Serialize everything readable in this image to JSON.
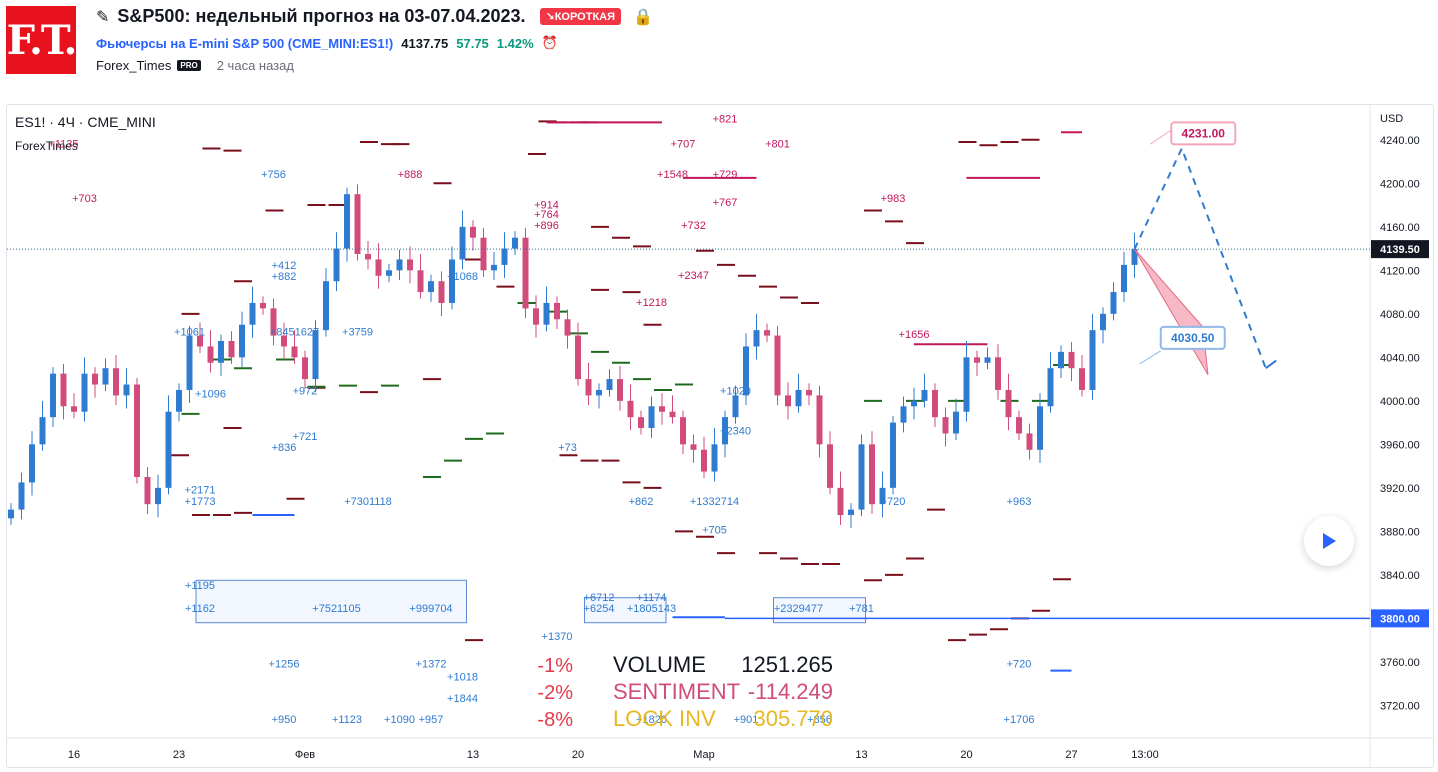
{
  "header": {
    "logo_text": "F.T.",
    "title": "S&P500: недельный прогноз на 03-07.04.2023.",
    "badge": "↘КОРОТКАЯ",
    "symbol_link": "Фьючерсы на E-mini S&P 500 (CME_MINI:ES1!)",
    "last_price": "4137.75",
    "change": "57.75",
    "change_pct": "1.42%",
    "author": "Forex_Times",
    "pro_badge": "PRO",
    "time_ago": "2 часа назад"
  },
  "chart": {
    "legend_symbol": "ES1! · 4Ч · CME_MINI",
    "legend_script": "ForexTimes",
    "currency": "USD",
    "colors": {
      "up": "#2f7bd0",
      "down": "#d14b7c",
      "resistance": "#7a0f1c",
      "support": "#1e6b1e",
      "magenta": "#c2185b",
      "blue_line": "#2962ff"
    }
  },
  "chart_data": {
    "type": "candlestick",
    "y_ticks": [
      "4240.00",
      "4200.00",
      "4160.00",
      "4120.00",
      "4080.00",
      "4040.00",
      "4000.00",
      "3960.00",
      "3920.00",
      "3880.00",
      "3840.00",
      "3800.00",
      "3760.00",
      "3720.00"
    ],
    "ylim": [
      3690,
      4272
    ],
    "x_ticks": [
      "16",
      "23",
      "Фев",
      "13",
      "20",
      "Мар",
      "13",
      "20",
      "27",
      "13:00"
    ],
    "current_price": 4139.5,
    "horizontal_line": 3800.0,
    "target_up": 4231.0,
    "target_down": 4030.5,
    "stats": [
      {
        "label": "VOLUME",
        "value": "1251.265"
      },
      {
        "label": "SENTIMENT",
        "value": "-114.249"
      },
      {
        "label": "LOCK INV",
        "value": "305.770"
      }
    ],
    "pct_labels": [
      "-1%",
      "-2%",
      "-8%"
    ],
    "close_path": [
      3900,
      3925,
      3960,
      3985,
      4025,
      3995,
      3990,
      4025,
      4015,
      4030,
      4005,
      4015,
      3930,
      3905,
      3920,
      3990,
      4010,
      4060,
      4050,
      4035,
      4055,
      4040,
      4070,
      4090,
      4085,
      4060,
      4050,
      4040,
      4020,
      4065,
      4110,
      4140,
      4190,
      4135,
      4130,
      4115,
      4120,
      4130,
      4120,
      4100,
      4110,
      4090,
      4130,
      4160,
      4150,
      4120,
      4125,
      4140,
      4150,
      4085,
      4070,
      4090,
      4075,
      4060,
      4020,
      4005,
      4010,
      4020,
      4000,
      3985,
      3975,
      3995,
      3990,
      3985,
      3960,
      3955,
      3935,
      3960,
      3985,
      4005,
      4050,
      4065,
      4060,
      4005,
      3995,
      4010,
      4005,
      3960,
      3920,
      3895,
      3900,
      3960,
      3905,
      3920,
      3980,
      3995,
      4000,
      4010,
      3985,
      3970,
      3990,
      4040,
      4035,
      4040,
      4010,
      3985,
      3970,
      3955,
      3995,
      4030,
      4045,
      4030,
      4010,
      4065,
      4080,
      4100,
      4125,
      4139.5
    ],
    "annotations": [
      {
        "text": "+1135",
        "color": "#c2185b",
        "price": 4233,
        "col": 5
      },
      {
        "text": "+703",
        "color": "#c2185b",
        "price": 4183,
        "col": 7
      },
      {
        "text": "+756",
        "color": "#2f7bd0",
        "price": 4205,
        "col": 25
      },
      {
        "text": "+888",
        "color": "#c2185b",
        "price": 4205,
        "col": 38
      },
      {
        "text": "+821",
        "color": "#c2185b",
        "price": 4256,
        "col": 68
      },
      {
        "text": "+707",
        "color": "#c2185b",
        "price": 4233,
        "col": 64
      },
      {
        "text": "+801",
        "color": "#c2185b",
        "price": 4233,
        "col": 73
      },
      {
        "text": "+1548",
        "color": "#c2185b",
        "price": 4205,
        "col": 63
      },
      {
        "text": "+729",
        "color": "#c2185b",
        "price": 4205,
        "col": 68
      },
      {
        "text": "+767",
        "color": "#c2185b",
        "price": 4179,
        "col": 68
      },
      {
        "text": "+983",
        "color": "#c2185b",
        "price": 4183,
        "col": 84
      },
      {
        "text": "+914",
        "color": "#c2185b",
        "price": 4177,
        "col": 51
      },
      {
        "text": "+764",
        "color": "#c2185b",
        "price": 4168,
        "col": 51
      },
      {
        "text": "+896",
        "color": "#c2185b",
        "price": 4158,
        "col": 51
      },
      {
        "text": "+732",
        "color": "#c2185b",
        "price": 4158,
        "col": 65
      },
      {
        "text": "+2347",
        "color": "#c2185b",
        "price": 4112,
        "col": 65
      },
      {
        "text": "+1218",
        "color": "#c2185b",
        "price": 4087,
        "col": 61
      },
      {
        "text": "+1656",
        "color": "#c2185b",
        "price": 4058,
        "col": 86
      },
      {
        "text": "+412",
        "color": "#2f7bd0",
        "price": 4121,
        "col": 26
      },
      {
        "text": "+882",
        "color": "#2f7bd0",
        "price": 4111,
        "col": 26
      },
      {
        "text": "+1068",
        "color": "#2f7bd0",
        "price": 4111,
        "col": 43
      },
      {
        "text": "+1061",
        "color": "#2f7bd0",
        "price": 4060,
        "col": 17
      },
      {
        "text": "+8451627",
        "color": "#2f7bd0",
        "price": 4060,
        "col": 27
      },
      {
        "text": "+3759",
        "color": "#2f7bd0",
        "price": 4060,
        "col": 33
      },
      {
        "text": "+1096",
        "color": "#2f7bd0",
        "price": 4003,
        "col": 19
      },
      {
        "text": "+972",
        "color": "#2f7bd0",
        "price": 4006,
        "col": 28
      },
      {
        "text": "+721",
        "color": "#2f7bd0",
        "price": 3964,
        "col": 28
      },
      {
        "text": "+836",
        "color": "#2f7bd0",
        "price": 3954,
        "col": 26
      },
      {
        "text": "+2171",
        "color": "#2f7bd0",
        "price": 3915,
        "col": 18
      },
      {
        "text": "+1773",
        "color": "#2f7bd0",
        "price": 3904,
        "col": 18
      },
      {
        "text": "+7301118",
        "color": "#2f7bd0",
        "price": 3904,
        "col": 34
      },
      {
        "text": "+73",
        "color": "#2f7bd0",
        "price": 3954,
        "col": 53
      },
      {
        "text": "+862",
        "color": "#2f7bd0",
        "price": 3904,
        "col": 60
      },
      {
        "text": "+1332714",
        "color": "#2f7bd0",
        "price": 3904,
        "col": 67
      },
      {
        "text": "+705",
        "color": "#2f7bd0",
        "price": 3878,
        "col": 67
      },
      {
        "text": "+2340",
        "color": "#2f7bd0",
        "price": 3969,
        "col": 69
      },
      {
        "text": "+1029",
        "color": "#2f7bd0",
        "price": 4006,
        "col": 69
      },
      {
        "text": "+720",
        "color": "#2f7bd0",
        "price": 3904,
        "col": 84
      },
      {
        "text": "+963",
        "color": "#2f7bd0",
        "price": 3904,
        "col": 96
      },
      {
        "text": "+1195",
        "color": "#2f7bd0",
        "price": 3827,
        "col": 18
      },
      {
        "text": "+1162",
        "color": "#2f7bd0",
        "price": 3806,
        "col": 18
      },
      {
        "text": "+7521105",
        "color": "#2f7bd0",
        "price": 3806,
        "col": 31
      },
      {
        "text": "+999704",
        "color": "#2f7bd0",
        "price": 3806,
        "col": 40
      },
      {
        "text": "+6712",
        "color": "#2f7bd0",
        "price": 3816,
        "col": 56
      },
      {
        "text": "+1174",
        "color": "#2f7bd0",
        "price": 3816,
        "col": 61
      },
      {
        "text": "+6254",
        "color": "#2f7bd0",
        "price": 3806,
        "col": 56
      },
      {
        "text": "+1805143",
        "color": "#2f7bd0",
        "price": 3806,
        "col": 61
      },
      {
        "text": "+2329477",
        "color": "#2f7bd0",
        "price": 3806,
        "col": 75
      },
      {
        "text": "+781",
        "color": "#2f7bd0",
        "price": 3806,
        "col": 81
      },
      {
        "text": "+1370",
        "color": "#2f7bd0",
        "price": 3780,
        "col": 52
      },
      {
        "text": "+1256",
        "color": "#2f7bd0",
        "price": 3755,
        "col": 26
      },
      {
        "text": "+1372",
        "color": "#2f7bd0",
        "price": 3755,
        "col": 40
      },
      {
        "text": "+1018",
        "color": "#2f7bd0",
        "price": 3743,
        "col": 43
      },
      {
        "text": "+1844",
        "color": "#2f7bd0",
        "price": 3723,
        "col": 43
      },
      {
        "text": "+720",
        "color": "#2f7bd0",
        "price": 3755,
        "col": 96
      },
      {
        "text": "+950",
        "color": "#2f7bd0",
        "price": 3704,
        "col": 26
      },
      {
        "text": "+1123",
        "color": "#2f7bd0",
        "price": 3704,
        "col": 32
      },
      {
        "text": "+1090",
        "color": "#2f7bd0",
        "price": 3704,
        "col": 37
      },
      {
        "text": "+957",
        "color": "#2f7bd0",
        "price": 3704,
        "col": 40
      },
      {
        "text": "+1820",
        "color": "#2f7bd0",
        "price": 3704,
        "col": 61
      },
      {
        "text": "+901",
        "color": "#2f7bd0",
        "price": 3704,
        "col": 70
      },
      {
        "text": "+856",
        "color": "#2f7bd0",
        "price": 3704,
        "col": 77
      },
      {
        "text": "+1706",
        "color": "#2f7bd0",
        "price": 3704,
        "col": 96
      }
    ]
  }
}
